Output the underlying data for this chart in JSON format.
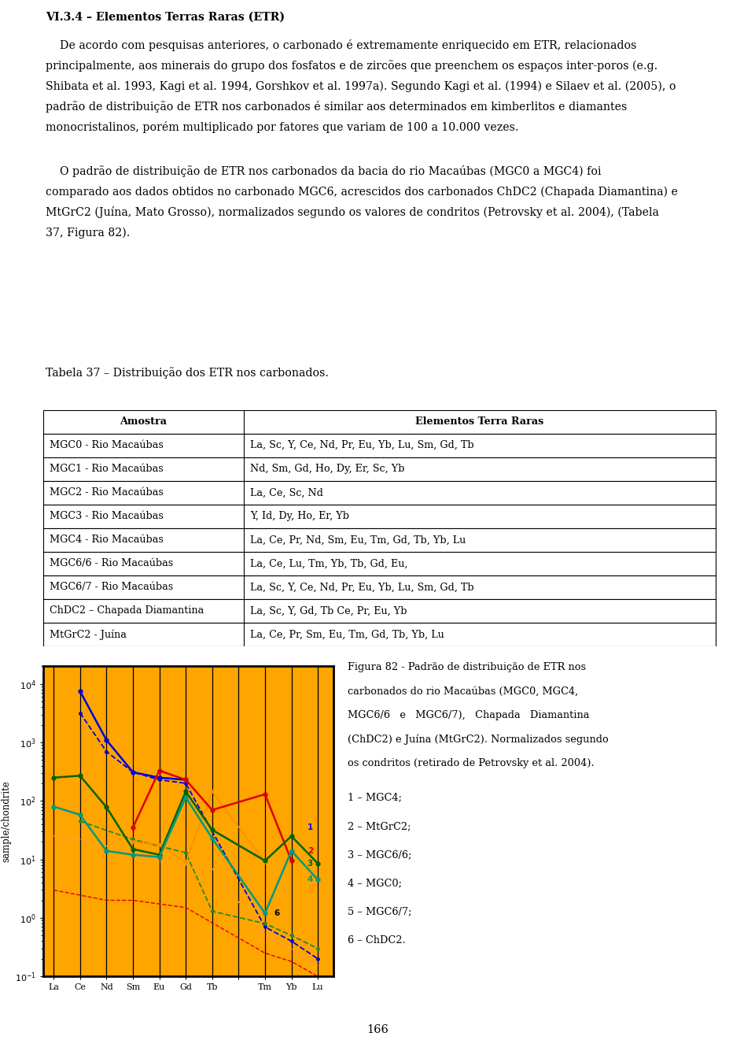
{
  "title": "VI.3.4 – Elementos Terras Raras (ETR)",
  "table_caption": "Tabela 37 – Distribuição dos ETR nos carbonados.",
  "table_headers": [
    "Amostra",
    "Elementos Terra Raras"
  ],
  "table_rows": [
    [
      "MGC0 - Rio Macaúbas",
      "La, Sc, Y, Ce, Nd, Pr, Eu, Yb, Lu, Sm, Gd, Tb"
    ],
    [
      "MGC1 - Rio Macaúbas",
      "Nd, Sm, Gd, Ho, Dy, Er, Sc, Yb"
    ],
    [
      "MGC2 - Rio Macaúbas",
      "La, Ce, Sc, Nd"
    ],
    [
      "MGC3 - Rio Macaúbas",
      "Y, Id, Dy, Ho, Er, Yb"
    ],
    [
      "MGC4 - Rio Macaúbas",
      "La, Ce, Pr, Nd, Sm, Eu, Tm, Gd, Tb, Yb, Lu"
    ],
    [
      "MGC6/6 - Rio Macaúbas",
      "La, Ce, Lu, Tm, Yb, Tb, Gd, Eu,"
    ],
    [
      "MGC6/7 - Rio Macaúbas",
      "La, Sc, Y, Ce, Nd, Pr, Eu, Yb, Lu, Sm, Gd, Tb"
    ],
    [
      "ChDC2 – Chapada Diamantina",
      "La, Sc, Y, Gd, Tb Ce, Pr, Eu, Yb"
    ],
    [
      "MtGrC2 - Juína",
      "La, Ce, Pr, Sm, Eu, Tm, Gd, Tb, Yb, Lu"
    ]
  ],
  "legend_items": [
    "1 – MGC4;",
    "2 – MtGrC2;",
    "3 – MGC6/6;",
    "4 – MGC0;",
    "5 – MGC6/7;",
    "6 – ChDC2."
  ],
  "page_number": "166",
  "x_labels": [
    "La",
    "Ce",
    "Nd",
    "Sm",
    "Eu",
    "Gd",
    "Tb",
    "",
    "Tm",
    "Yb",
    "Lu"
  ],
  "chart_background": "#FFA500",
  "ylabel": "sample/chondrite",
  "ylim": [
    0.1,
    20000
  ]
}
